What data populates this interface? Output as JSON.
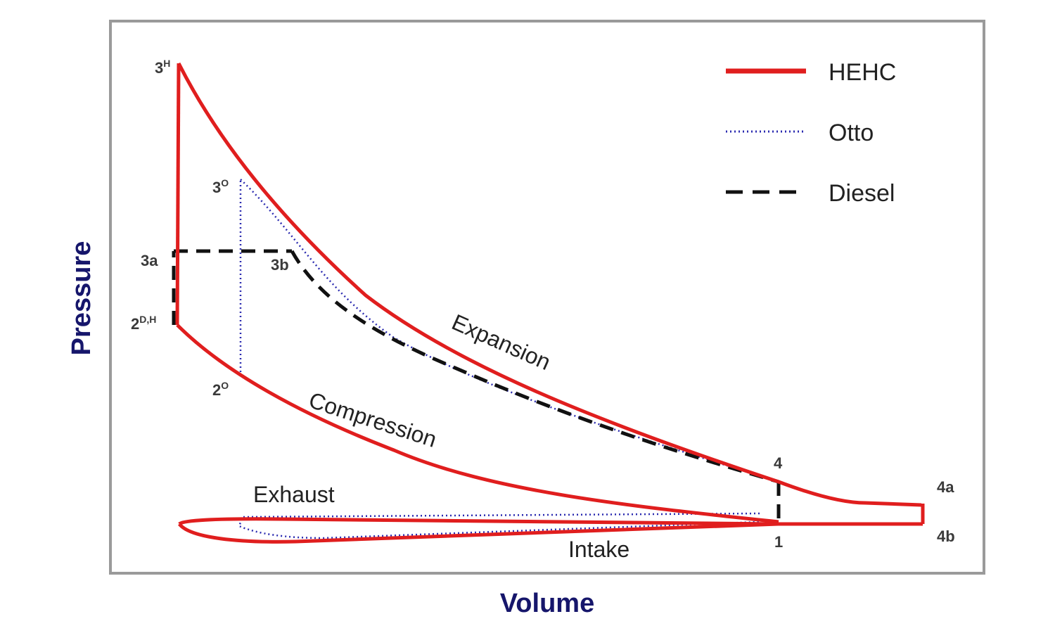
{
  "chart_data": {
    "type": "line",
    "xlabel": "Volume",
    "ylabel": "Pressure",
    "colors": {
      "HEHC": "#e01e1e",
      "Otto": "#2b2bb0",
      "Diesel": "#111111",
      "axis_title": "#16166b",
      "frame": "#9a9a9a"
    },
    "legend": {
      "placement": "top-right",
      "entries": [
        {
          "name": "HEHC",
          "style": "solid"
        },
        {
          "name": "Otto",
          "style": "dotted"
        },
        {
          "name": "Diesel",
          "style": "dashed"
        }
      ]
    },
    "point_labels": [
      {
        "id": "3H",
        "base": "3",
        "sup": "H"
      },
      {
        "id": "3O",
        "base": "3",
        "sup": "O"
      },
      {
        "id": "3a",
        "base": "3a",
        "sup": ""
      },
      {
        "id": "3b",
        "base": "3b",
        "sup": ""
      },
      {
        "id": "2DH",
        "base": "2",
        "sup": "D,H"
      },
      {
        "id": "2O",
        "base": "2",
        "sup": "O"
      },
      {
        "id": "4",
        "base": "4",
        "sup": ""
      },
      {
        "id": "4a",
        "base": "4a",
        "sup": ""
      },
      {
        "id": "1",
        "base": "1",
        "sup": ""
      },
      {
        "id": "4b",
        "base": "4b",
        "sup": ""
      }
    ],
    "process_labels": {
      "expansion": "Expansion",
      "compression": "Compression",
      "exhaust": "Exhaust",
      "intake": "Intake"
    }
  }
}
